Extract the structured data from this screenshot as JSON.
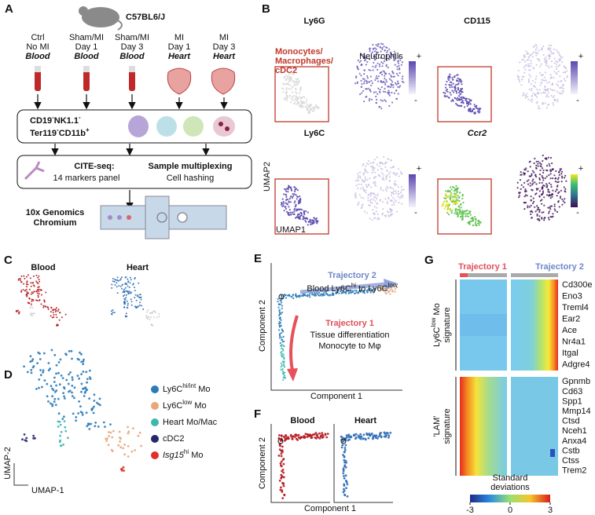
{
  "panel_labels": [
    "A",
    "B",
    "C",
    "D",
    "E",
    "F",
    "G"
  ],
  "panel_a": {
    "strain": "C57BL6/J",
    "samples": [
      [
        "Ctrl",
        "No MI",
        "Blood"
      ],
      [
        "Sham/MI",
        "Day 1",
        "Blood"
      ],
      [
        "Sham/MI",
        "Day 3",
        "Blood"
      ],
      [
        "MI",
        "Day 1",
        "Heart"
      ],
      [
        "MI",
        "Day 3",
        "Heart"
      ]
    ],
    "gate": [
      [
        "CD19",
        "-",
        "NK1.1",
        "-"
      ],
      [
        "Ter119",
        "-",
        "CD11b",
        "+"
      ]
    ],
    "cite_seq": "CITE-seq:",
    "cite_desc": "14 markers panel",
    "multiplex": "Sample multiplexing",
    "multiplex_desc": "Cell hashing",
    "platform": [
      "10x Genomics",
      "Chromium"
    ]
  },
  "panel_b": {
    "plots": [
      {
        "title": "Ly6G",
        "plus": "+",
        "minus": "-"
      },
      {
        "title": "CD115",
        "plus": "+",
        "minus": "-"
      },
      {
        "title": "Ly6C",
        "plus": "+",
        "minus": "-"
      },
      {
        "title": "Ccr2",
        "plus": "+",
        "minus": "-"
      }
    ],
    "population_label": [
      "Monocytes/",
      "Macrophages/",
      "cDC2"
    ],
    "neutrophils": "Neutrophils",
    "y_axis": "UMAP2",
    "x_axis": "UMAP1"
  },
  "panel_c": {
    "titles": [
      "Blood",
      "Heart"
    ]
  },
  "panel_d": {
    "legend": [
      {
        "parts": [
          "Ly6C",
          "hi/int",
          " Mo"
        ],
        "color": "#2b7bba"
      },
      {
        "parts": [
          "Ly6C",
          "low",
          " Mo"
        ],
        "color": "#e8a67a"
      },
      {
        "parts": [
          "Heart Mo/Mac"
        ],
        "color": "#3bb8ae"
      },
      {
        "parts": [
          "cDC2"
        ],
        "color": "#26286a"
      },
      {
        "parts": [
          "Isg15",
          "hi",
          " Mo"
        ],
        "color": "#e0302a",
        "italic": true
      }
    ],
    "y_axis": "UMAP-2",
    "x_axis": "UMAP-1"
  },
  "panel_e": {
    "trajectory2": {
      "title": "Trajectory 2",
      "desc": [
        "Blood Ly6C",
        "hi",
        " to Ly6C",
        "low"
      ]
    },
    "trajectory1": {
      "title": "Trajectory 1",
      "desc": [
        "Tissue differentiation",
        "Monocyte to Mφ"
      ]
    },
    "y_axis": "Component 2",
    "x_axis": "Component 1"
  },
  "panel_f": {
    "titles": [
      "Blood",
      "Heart"
    ],
    "y_axis": "Component 2",
    "x_axis": "Component 1"
  },
  "panel_g": {
    "trajectories": [
      "Trajectory 1",
      "Trajectory 2"
    ],
    "signatures": [
      {
        "label": [
          [
            "Ly6C",
            "low",
            " Mo"
          ],
          [
            "signature"
          ]
        ],
        "genes": [
          "Cd300e",
          "Eno3",
          "Treml4",
          "Ear2",
          "Ace",
          "Nr4a1",
          "Itgal",
          "Adgre4"
        ]
      },
      {
        "label": [
          [
            "'LAM'"
          ],
          [
            "signature"
          ]
        ],
        "genes": [
          "Gpnmb",
          "Cd63",
          "Spp1",
          "Mmp14",
          "Ctsd",
          "Nceh1",
          "Anxa4",
          "Cstb",
          "Ctss",
          "Trem2"
        ]
      }
    ],
    "colorbar": {
      "title": [
        "Standard",
        "deviations"
      ],
      "ticks": [
        -3,
        0,
        3
      ]
    }
  }
}
